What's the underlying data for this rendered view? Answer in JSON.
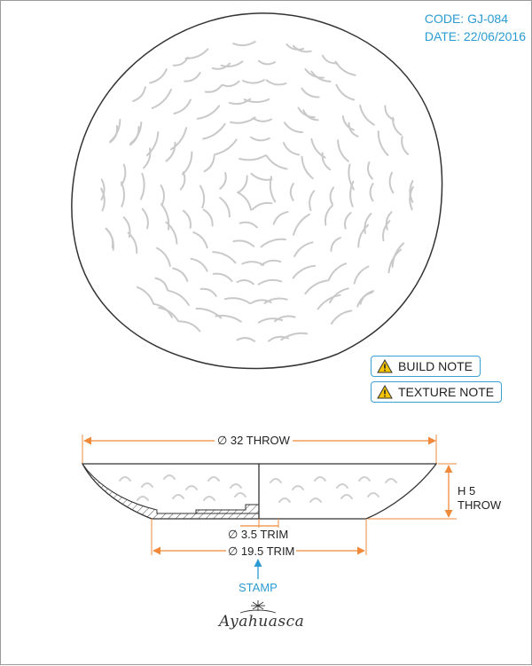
{
  "header": {
    "code": "CODE: GJ-084",
    "date": "DATE: 22/06/2016"
  },
  "notes": {
    "build": "BUILD NOTE",
    "texture": "TEXTURE NOTE"
  },
  "dimensions": {
    "diameter": "∅ 32 THROW",
    "height_line1": "H 5",
    "height_line2": "THROW",
    "foot_inner": "∅ 3.5 TRIM",
    "foot_outer": "∅ 19.5 TRIM"
  },
  "stamp": {
    "label": "STAMP",
    "logo_text": "Ayahuasca"
  },
  "colors": {
    "accent": "#2a9bd3",
    "dimension": "#f08a3a",
    "warning": "#f5c400"
  }
}
